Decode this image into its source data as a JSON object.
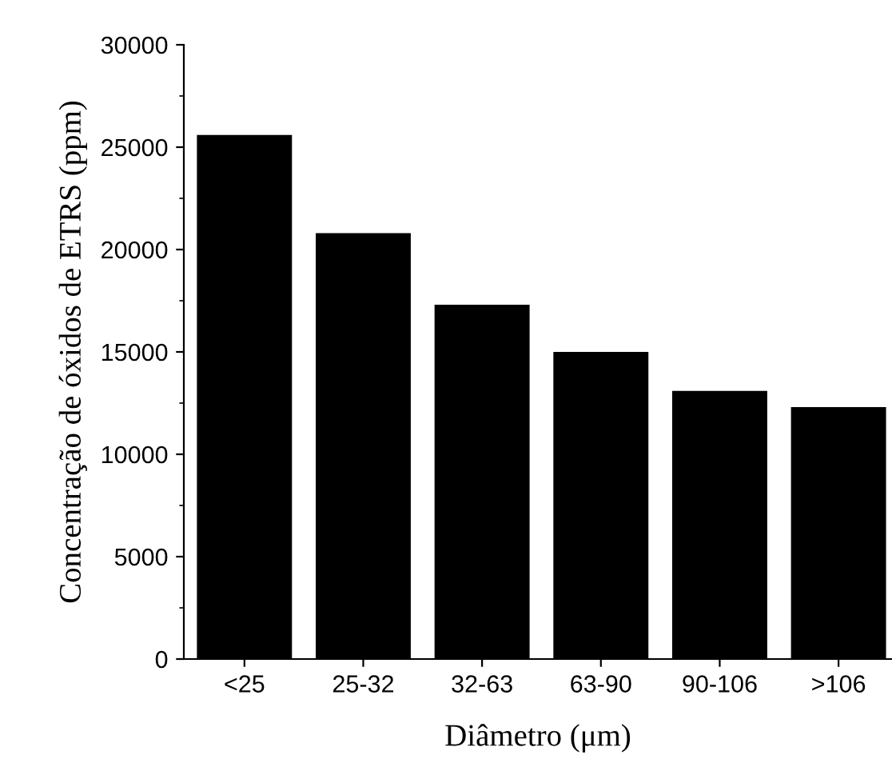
{
  "chart_data": {
    "type": "bar",
    "xlabel": "Diâmetro (μm)",
    "ylabel": "Concentração de óxidos de ETRS (ppm)",
    "categories": [
      "<25",
      "25-32",
      "32-63",
      "63-90",
      "90-106",
      ">106"
    ],
    "values": [
      25600,
      20800,
      17300,
      15000,
      13100,
      12300
    ],
    "color": "#000000",
    "ylim": [
      0,
      30000
    ],
    "yticks": [
      0,
      5000,
      10000,
      15000,
      20000,
      25000,
      30000
    ],
    "grid": false
  }
}
